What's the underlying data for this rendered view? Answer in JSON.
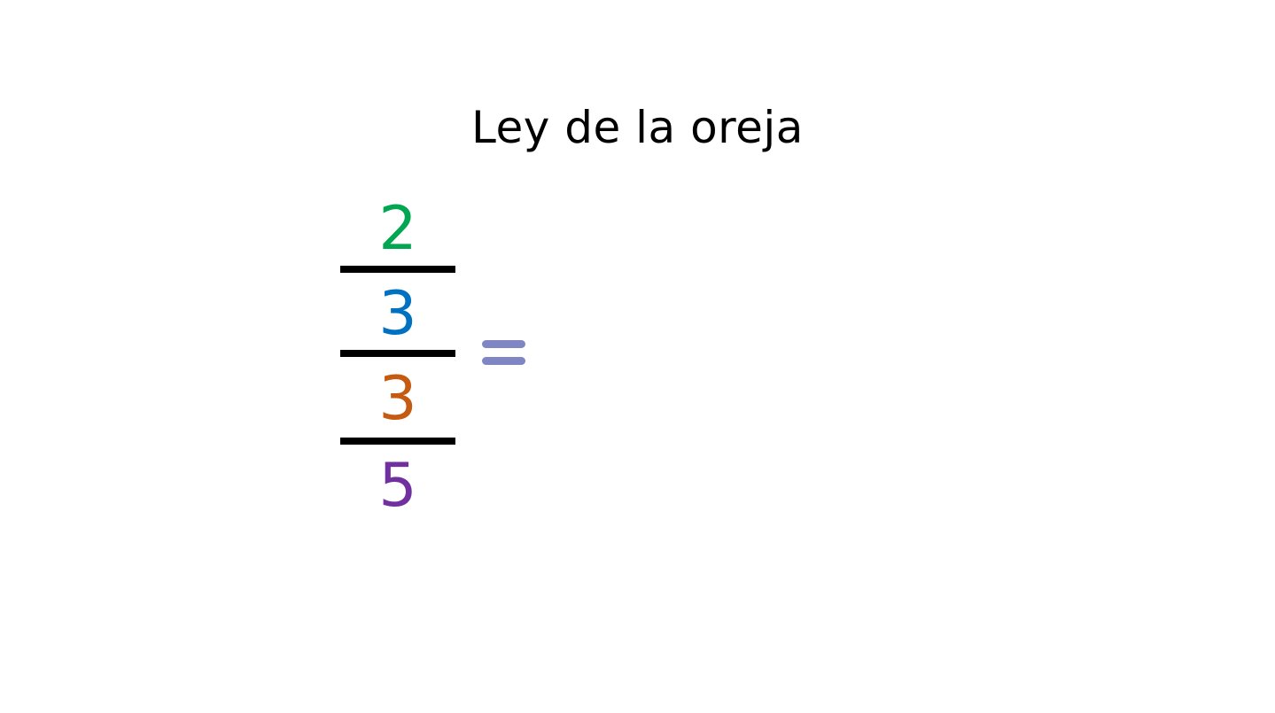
{
  "slide": {
    "title": "Ley de la oreja"
  },
  "fraction": {
    "parts": [
      {
        "text": "2",
        "color": "#00A651"
      },
      {
        "text": "3",
        "color": "#0070C0"
      },
      {
        "text": "3",
        "color": "#C55A11"
      },
      {
        "text": "5",
        "color": "#7030A0"
      }
    ]
  },
  "equals_sign": {
    "color": "#7F86C3"
  }
}
